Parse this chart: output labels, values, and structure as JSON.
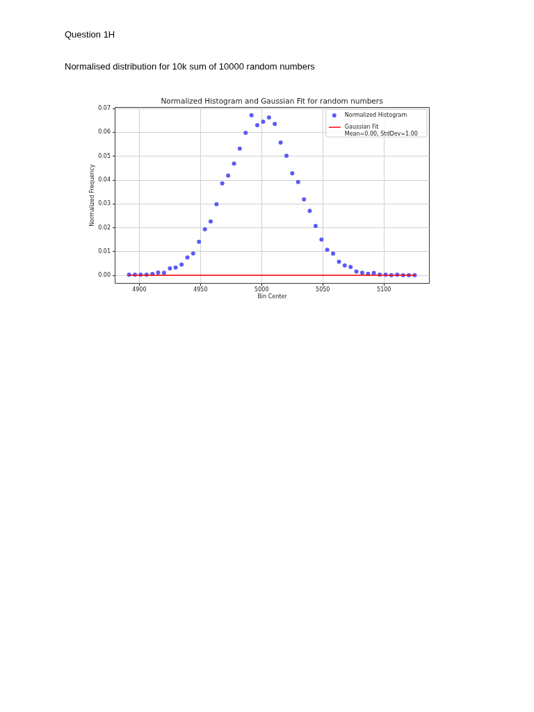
{
  "chart_data": {
    "type": "scatter",
    "title": "Normalized Histogram and Gaussian Fit for random numbers",
    "xlabel": "Bin Center",
    "ylabel": "Normalized Frequency",
    "annotations": [
      "Question 1H",
      "Normalised distribution for 10k sum of 10000 random numbers"
    ],
    "x": [
      4891.9,
      4896.7,
      4901.4,
      4906.2,
      4911.0,
      4915.7,
      4920.5,
      4925.3,
      4930.0,
      4934.8,
      4939.6,
      4944.3,
      4949.1,
      4953.9,
      4958.6,
      4963.4,
      4968.1,
      4972.9,
      4977.7,
      4982.4,
      4987.2,
      4992.0,
      4996.7,
      5001.5,
      5006.3,
      5011.0,
      5015.8,
      5020.6,
      5025.3,
      5030.1,
      5034.9,
      5039.6,
      5044.4,
      5049.2,
      5053.9,
      5058.7,
      5063.5,
      5068.2,
      5073.0,
      5077.7,
      5082.5,
      5087.3,
      5092.0,
      5096.8,
      5101.6,
      5106.3,
      5111.1,
      5115.9,
      5120.6,
      5125.4
    ],
    "series": [
      {
        "name": "Normalized Histogram",
        "color": "#5b5bf5",
        "marker": "circle",
        "values": [
          0.0002,
          0.0002,
          0.0002,
          0.0002,
          0.0005,
          0.0011,
          0.001,
          0.0028,
          0.0032,
          0.0044,
          0.0074,
          0.0091,
          0.014,
          0.0192,
          0.0225,
          0.0297,
          0.0385,
          0.0418,
          0.0468,
          0.0531,
          0.0597,
          0.0671,
          0.0629,
          0.0644,
          0.0661,
          0.0634,
          0.0556,
          0.0501,
          0.0427,
          0.0391,
          0.0318,
          0.027,
          0.0206,
          0.0149,
          0.0106,
          0.009,
          0.0056,
          0.0041,
          0.0034,
          0.0015,
          0.001,
          0.0006,
          0.0009,
          0.0002,
          0.0002,
          0.0,
          0.0002,
          0.0,
          0.0,
          0.0
        ]
      },
      {
        "type": "line",
        "name": "Gaussian Fit\nMean=0.00, StdDev=1.00",
        "color": "#ff0000",
        "line_style": "solid",
        "x": [
          4891.9,
          5125.4
        ],
        "values": [
          0,
          0
        ]
      }
    ],
    "xlim": [
      4880.2,
      5137.1
    ],
    "xticks": [
      4900,
      4950,
      5000,
      5050,
      5100
    ],
    "ylim": [
      -0.0033,
      0.0705
    ],
    "yticks": [
      {
        "value": 0,
        "label": "0.00"
      },
      0.01,
      0.02,
      0.03,
      0.04,
      0.05,
      0.06,
      0.07
    ],
    "grid": true,
    "legend": "top right"
  }
}
